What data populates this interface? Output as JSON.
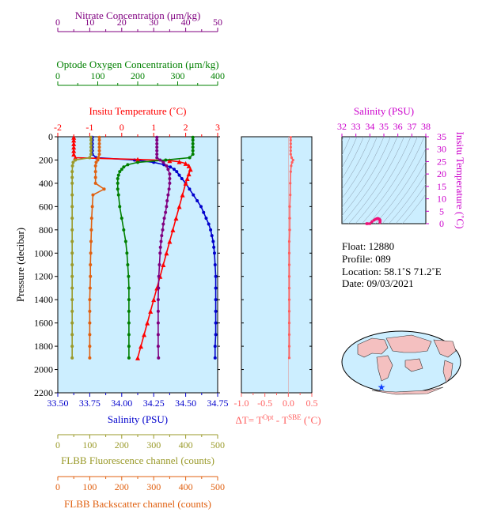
{
  "colors": {
    "nitrate": "#800080",
    "oxygen": "#008000",
    "temperature": "#ff0000",
    "salinity": "#0000cc",
    "fluorescence": "#9a9a2a",
    "backscatter": "#e06010",
    "delta_t": "#ff6060",
    "panel_bg": "#cceeff"
  },
  "info": {
    "float": "Float:  12880",
    "profile": "Profile:  089",
    "location": "Location:  58.1˚S  71.2˚E",
    "date": "Date:  09/03/2021"
  },
  "chart_data": [
    {
      "type": "line",
      "panel": "main-profile",
      "ylabel": "Pressure (decibar)",
      "ylim": [
        0,
        2200
      ],
      "y_ticks": [
        0,
        200,
        400,
        600,
        800,
        1000,
        1200,
        1400,
        1600,
        1800,
        2000,
        2200
      ],
      "axes": {
        "salinity": {
          "label": "Salinity (PSU)",
          "range": [
            33.5,
            34.75
          ],
          "ticks": [
            "33.50",
            "33.75",
            "34.00",
            "34.25",
            "34.50",
            "34.75"
          ],
          "position": "bottom"
        },
        "temperature": {
          "label": "Insitu Temperature (˚C)",
          "range": [
            -2,
            3
          ],
          "ticks": [
            "-2",
            "-1",
            "0",
            "1",
            "2",
            "3"
          ],
          "position": "top"
        },
        "oxygen": {
          "label": "Optode Oxygen Concentration (μm/kg)",
          "range": [
            0,
            400
          ],
          "ticks": [
            "0",
            "100",
            "200",
            "300",
            "400"
          ],
          "position": "top"
        },
        "nitrate": {
          "label": "Nitrate Concentration (μm/kg)",
          "range": [
            0,
            50
          ],
          "ticks": [
            "0",
            "10",
            "20",
            "30",
            "40",
            "50"
          ],
          "position": "top"
        },
        "fluorescence": {
          "label": "FLBB Fluorescence channel (counts)",
          "range": [
            0,
            500
          ],
          "ticks": [
            "0",
            "100",
            "200",
            "300",
            "400",
            "500"
          ],
          "position": "bottom"
        },
        "backscatter": {
          "label": "FLBB Backscatter channel (counts)",
          "range": [
            0,
            500
          ],
          "ticks": [
            "0",
            "100",
            "200",
            "300",
            "400",
            "500"
          ],
          "position": "bottom"
        }
      },
      "series": [
        {
          "key": "salinity",
          "pressure": [
            5,
            30,
            60,
            90,
            120,
            150,
            180,
            200,
            220,
            240,
            260,
            280,
            300,
            330,
            360,
            400,
            450,
            500,
            550,
            600,
            650,
            700,
            750,
            800,
            850,
            900,
            950,
            1000,
            1100,
            1200,
            1300,
            1400,
            1500,
            1600,
            1700,
            1800,
            1900
          ],
          "values": [
            33.77,
            33.77,
            33.77,
            33.77,
            33.77,
            33.77,
            33.8,
            34.1,
            34.25,
            34.33,
            34.38,
            34.41,
            34.43,
            34.45,
            34.47,
            34.5,
            34.53,
            34.56,
            34.59,
            34.62,
            34.64,
            34.66,
            34.68,
            34.695,
            34.705,
            34.715,
            34.72,
            34.725,
            34.73,
            34.735,
            34.735,
            34.735,
            34.735,
            34.735,
            34.735,
            34.73,
            34.73
          ]
        },
        {
          "key": "temperature",
          "pressure": [
            5,
            30,
            60,
            90,
            120,
            150,
            180,
            195,
            205,
            215,
            230,
            250,
            280,
            320,
            360,
            400,
            500,
            600,
            700,
            800,
            900,
            1000,
            1100,
            1200,
            1300,
            1400,
            1500,
            1600,
            1700,
            1800,
            1900
          ],
          "values": [
            -1.5,
            -1.5,
            -1.5,
            -1.5,
            -1.5,
            -1.5,
            -1.45,
            0.5,
            1.5,
            1.8,
            2.0,
            2.1,
            2.15,
            2.1,
            2.05,
            2.0,
            1.9,
            1.8,
            1.7,
            1.6,
            1.5,
            1.4,
            1.3,
            1.2,
            1.1,
            1.0,
            0.9,
            0.8,
            0.7,
            0.6,
            0.5
          ]
        },
        {
          "key": "oxygen",
          "pressure": [
            5,
            30,
            60,
            90,
            120,
            150,
            180,
            200,
            220,
            240,
            260,
            280,
            300,
            330,
            360,
            400,
            450,
            500,
            600,
            700,
            800,
            900,
            1000,
            1100,
            1200,
            1300,
            1400,
            1500,
            1600,
            1700,
            1800,
            1900
          ],
          "values": [
            338,
            338,
            338,
            338,
            338,
            338,
            330,
            270,
            200,
            175,
            165,
            160,
            155,
            152,
            150,
            150,
            150,
            152,
            155,
            160,
            165,
            170,
            173,
            175,
            177,
            178,
            178,
            178,
            178,
            178,
            178,
            178
          ]
        },
        {
          "key": "nitrate",
          "pressure": [
            5,
            30,
            60,
            90,
            120,
            150,
            180,
            200,
            220,
            250,
            280,
            320,
            360,
            400,
            450,
            500,
            550,
            600,
            650,
            700,
            750,
            800,
            850,
            900,
            950,
            1000,
            1100,
            1200,
            1300,
            1400,
            1500,
            1600,
            1700,
            1800,
            1900
          ],
          "values": [
            31,
            31,
            31,
            31,
            31,
            31,
            31,
            32,
            33,
            34,
            34.5,
            35,
            35,
            35,
            34.8,
            34.5,
            34.2,
            34,
            33.7,
            33.3,
            33,
            32.8,
            32.5,
            32.3,
            32.1,
            32,
            31.8,
            31.6,
            31.5,
            31.4,
            31.4,
            31.4,
            31.4,
            31.4,
            31.5
          ]
        },
        {
          "key": "fluorescence",
          "pressure": [
            5,
            30,
            60,
            90,
            120,
            150,
            180,
            200,
            220,
            250,
            300,
            350,
            400,
            500,
            600,
            700,
            800,
            900,
            1000,
            1100,
            1200,
            1300,
            1400,
            1500,
            1600,
            1700,
            1800,
            1900
          ],
          "values": [
            104,
            104,
            104,
            104,
            104,
            104,
            100,
            55,
            48,
            46,
            45,
            45,
            45,
            45,
            45,
            45,
            45,
            45,
            45,
            45,
            45,
            45,
            45,
            45,
            45,
            45,
            45,
            45
          ]
        },
        {
          "key": "backscatter",
          "pressure": [
            5,
            30,
            60,
            90,
            120,
            150,
            180,
            200,
            220,
            250,
            300,
            350,
            400,
            450,
            500,
            600,
            700,
            800,
            900,
            1000,
            1100,
            1200,
            1300,
            1400,
            1500,
            1600,
            1700,
            1800,
            1900
          ],
          "values": [
            130,
            130,
            130,
            130,
            130,
            130,
            127,
            125,
            120,
            118,
            118,
            118,
            118,
            145,
            110,
            108,
            106,
            105,
            104,
            103,
            102,
            102,
            101,
            100,
            100,
            100,
            100,
            100,
            100
          ]
        }
      ]
    },
    {
      "type": "line",
      "panel": "delta-t",
      "xlabel": "ΔT= T",
      "xlabel_sup1": "Opt",
      "xlabel_mid": " - T",
      "xlabel_sup2": "SBE",
      "xlabel_end": " (˚C)",
      "xlim": [
        -1.0,
        0.5
      ],
      "x_ticks": [
        "-1.0",
        "-0.5",
        "0.0",
        "0.5"
      ],
      "ylim": [
        0,
        2200
      ],
      "series": [
        {
          "key": "delta_t",
          "pressure": [
            5,
            30,
            60,
            90,
            120,
            150,
            180,
            200,
            220,
            250,
            300,
            400,
            500,
            600,
            700,
            800,
            900,
            1000,
            1100,
            1200,
            1300,
            1400,
            1500,
            1600,
            1700,
            1800,
            1900
          ],
          "values": [
            0.05,
            0.05,
            0.05,
            0.05,
            0.05,
            0.05,
            0.07,
            0.1,
            0.08,
            0.06,
            0.05,
            0.04,
            0.04,
            0.03,
            0.03,
            0.03,
            0.02,
            0.02,
            0.02,
            0.02,
            0.02,
            0.02,
            0.02,
            0.02,
            0.02,
            0.02,
            0.02
          ]
        }
      ]
    },
    {
      "type": "scatter",
      "panel": "ts-diagram",
      "title": "Salinity (PSU)",
      "ylabel": "Insitu Temperature (˚C)",
      "xlim": [
        32,
        38
      ],
      "ylim": [
        0,
        35
      ],
      "x_ticks": [
        "32",
        "33",
        "34",
        "35",
        "36",
        "37",
        "38"
      ],
      "y_ticks": [
        "0",
        "5",
        "10",
        "15",
        "20",
        "25",
        "30",
        "35"
      ],
      "series": [
        {
          "key": "ts",
          "x": [
            33.77,
            33.78,
            33.85,
            34.0,
            34.15,
            34.3,
            34.4,
            34.5,
            34.55,
            34.6,
            34.65,
            34.7,
            34.73,
            34.73,
            34.72
          ],
          "y": [
            -1.5,
            -1.45,
            -1.0,
            0.0,
            0.8,
            1.4,
            1.8,
            2.0,
            2.1,
            2.05,
            1.9,
            1.7,
            1.4,
            1.0,
            0.5
          ]
        }
      ]
    }
  ]
}
